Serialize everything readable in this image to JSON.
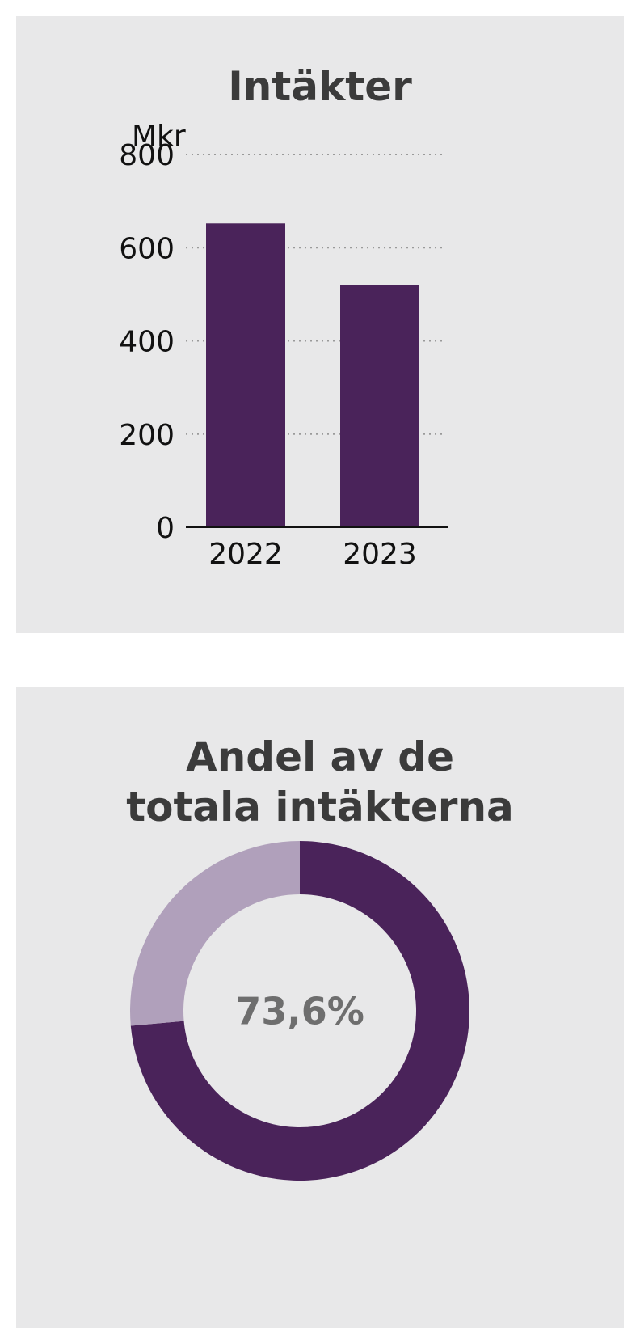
{
  "colors": {
    "bar": "#4a235a",
    "donut_main": "#4a235a",
    "donut_rest": "#b0a0bb",
    "grid": "#9a9a9a",
    "panel": "#e8e8e9",
    "title": "#3b3b3b",
    "center_text": "#6e6e6e"
  },
  "chart_data": [
    {
      "type": "bar",
      "title": "Intäkter",
      "ylabel": "Mkr",
      "categories": [
        "2022",
        "2023"
      ],
      "values": [
        652,
        520
      ],
      "ylim": [
        0,
        800
      ],
      "yticks": [
        "0",
        "200",
        "400",
        "600",
        "800"
      ],
      "grid": true
    },
    {
      "type": "pie",
      "title_lines": [
        "Andel av de",
        "totala intäkterna"
      ],
      "values": [
        73.6,
        26.4
      ],
      "center_label": "73,6%"
    }
  ]
}
